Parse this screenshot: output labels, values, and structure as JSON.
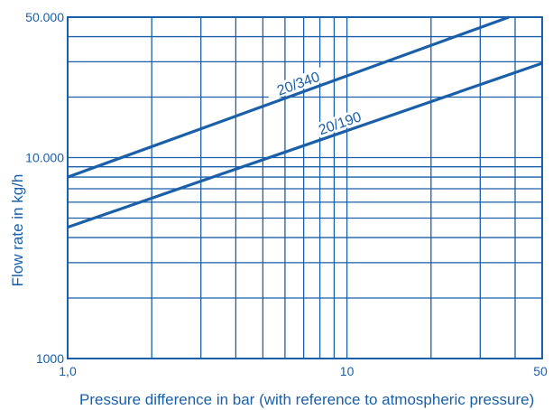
{
  "chart_data": {
    "type": "line",
    "title": "",
    "xlabel": "Pressure difference in bar (with reference to atmospheric pressure)",
    "ylabel": "Flow rate in  kg/h",
    "x_scale": "log",
    "y_scale": "log",
    "xlim": [
      1,
      50
    ],
    "ylim": [
      1000,
      50000
    ],
    "x_ticks": [
      {
        "value": 1,
        "label": "1,0"
      },
      {
        "value": 10,
        "label": "10"
      },
      {
        "value": 50,
        "label": "50"
      }
    ],
    "y_ticks": [
      {
        "value": 1000,
        "label": "1000"
      },
      {
        "value": 10000,
        "label": "10.000"
      },
      {
        "value": 50000,
        "label": "50.000"
      }
    ],
    "x_gridlines": [
      1,
      2,
      3,
      4,
      5,
      6,
      7,
      8,
      9,
      10,
      20,
      30,
      40,
      50
    ],
    "y_gridlines": [
      1000,
      2000,
      3000,
      4000,
      5000,
      6000,
      7000,
      8000,
      9000,
      10000,
      20000,
      30000,
      40000,
      50000
    ],
    "grid": true,
    "colors": {
      "axis": "#1a5fa8",
      "grid": "#1a5fa8",
      "series": "#1a5fa8",
      "text": "#1a5fa8"
    },
    "series": [
      {
        "name": "20/340",
        "points": [
          [
            1,
            8000
          ],
          [
            38,
            50000
          ]
        ]
      },
      {
        "name": "20/190",
        "points": [
          [
            1,
            4500
          ],
          [
            50,
            29500
          ]
        ]
      }
    ]
  }
}
